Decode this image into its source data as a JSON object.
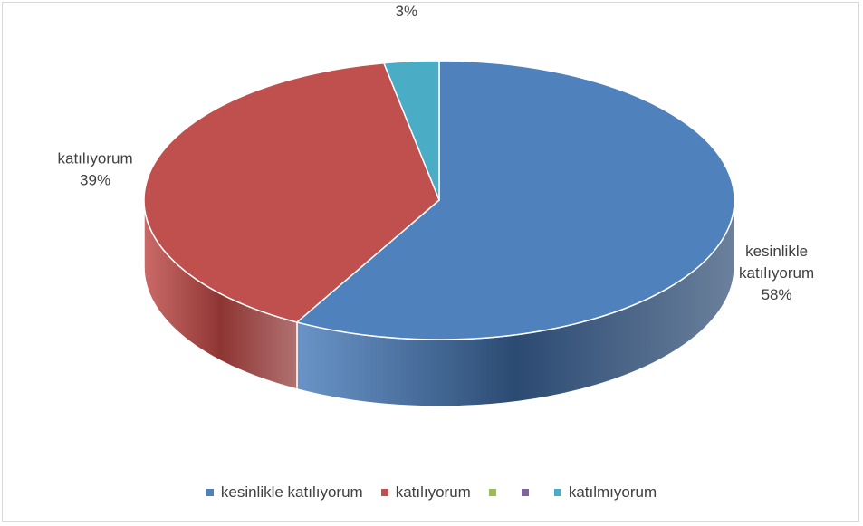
{
  "chart_data": {
    "type": "pie",
    "style": "3d",
    "slices": [
      {
        "label": "kesinlikle katılıyorum",
        "label_lines": [
          "kesinlikle",
          "katılıyorum"
        ],
        "percent_label": "58%",
        "value": 58,
        "color": "#4F81BD",
        "side_color": "#2B4A72"
      },
      {
        "label": "katılıyorum",
        "label_lines": [
          "katılıyorum"
        ],
        "percent_label": "39%",
        "value": 39,
        "color": "#C0504D",
        "side_color": "#8E3533"
      },
      {
        "label": "katılmıyorum",
        "label_lines": [
          "katılmıyorum"
        ],
        "percent_label": "3%",
        "value": 3,
        "color": "#4BACC6",
        "side_color": "#2F7F94"
      }
    ],
    "legend": {
      "position": "bottom",
      "entries": [
        {
          "label": "kesinlikle katılıyorum",
          "color": "#4F81BD"
        },
        {
          "label": "katılıyorum",
          "color": "#C0504D"
        },
        {
          "label": "",
          "color": "#9BBB59"
        },
        {
          "label": "",
          "color": "#8064A2"
        },
        {
          "label": "katılmıyorum",
          "color": "#4BACC6"
        }
      ]
    }
  }
}
